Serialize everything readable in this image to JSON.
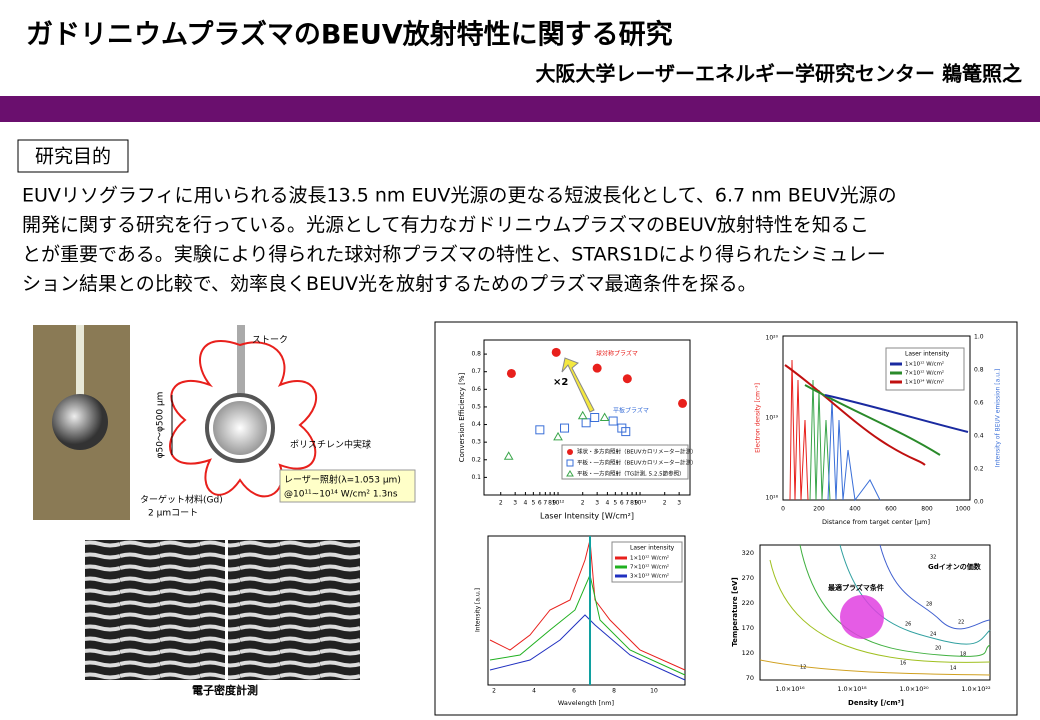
{
  "header": {
    "title": "ガドリニウムプラズマのBEUV放射特性に関する研究",
    "author": "大阪大学レーザーエネルギー学研究センター 鵜篭照之"
  },
  "purpose": {
    "heading": "研究目的",
    "lines": [
      "EUVリソグラフィに用いられる波長13.5 nm EUV光源の更なる短波長化として、6.7 nm BEUV光源の",
      "開発に関する研究を行っている。光源として有力なガドリニウムプラズマのBEUV放射特性を知るこ",
      "とが重要である。実験により得られた球対称プラズマの特性と、STARS1Dにより得られたシミュレー",
      "ション結果との比較で、効率良くBEUV光を放射するためのプラズマ最適条件を探る。"
    ]
  },
  "figures": {
    "target": {
      "stalk": "ストーク",
      "size": "φ50～φ500 μm",
      "sphere": "ポリスチレン中実球",
      "coating": [
        "ターゲット材料(Gd)",
        "2 μmコート"
      ],
      "laser": [
        "レーザー照射(λ=1.053 μm)",
        "@10¹¹~10¹⁴ W/cm² 1.3ns"
      ]
    },
    "fringe": {
      "caption": "電子密度計測"
    },
    "conversion_efficiency": {
      "type": "scatter",
      "x_label": "Laser Intensity [W/cm²]",
      "y_label": "Conversion Efficiency [%]",
      "log_x": true,
      "xlim": [
        125000000000.0,
        40700000000000.0
      ],
      "ylim": [
        0,
        0.88
      ],
      "xticks": [
        {
          "value": 200000000000.0,
          "label": "2"
        },
        {
          "value": 300000000000.0,
          "label": "3"
        },
        {
          "value": 400000000000.0,
          "label": "4"
        },
        {
          "value": 500000000000.0,
          "label": "5"
        },
        {
          "value": 600000000000.0,
          "label": "6"
        },
        {
          "value": 700000000000.0,
          "label": "7"
        },
        {
          "value": 800000000000.0,
          "label": "8"
        },
        {
          "value": 900000000000.0,
          "label": "9"
        },
        {
          "value": 1000000000000.0,
          "label": "10¹²"
        },
        {
          "value": 2000000000000.0,
          "label": "2"
        },
        {
          "value": 3000000000000.0,
          "label": "3"
        },
        {
          "value": 4000000000000.0,
          "label": "4"
        },
        {
          "value": 5000000000000.0,
          "label": "5"
        },
        {
          "value": 6000000000000.0,
          "label": "6"
        },
        {
          "value": 7000000000000.0,
          "label": "7"
        },
        {
          "value": 8000000000000.0,
          "label": "8"
        },
        {
          "value": 9000000000000.0,
          "label": "9"
        },
        {
          "value": 10000000000000.0,
          "label": "10¹³"
        },
        {
          "value": 20000000000000.0,
          "label": "2"
        },
        {
          "value": 30000000000000.0,
          "label": "3"
        }
      ],
      "yticks": [
        0.1,
        0.2,
        0.3,
        0.4,
        0.5,
        0.6,
        0.7,
        0.8
      ],
      "series": [
        {
          "name": "球状・多方向照射（BEUVカロリメーター計測）",
          "color": "#e8201c",
          "marker": "circle",
          "x": [
            270000000000.0,
            950000000000.0,
            3000000000000.0,
            7000000000000.0,
            33000000000000.0
          ],
          "values": [
            0.69,
            0.81,
            0.72,
            0.66,
            0.52
          ]
        },
        {
          "name": "平板・一方向照射（BEUVカロリメーター計測）",
          "color": "#3a6fd8",
          "marker": "square",
          "x": [
            600000000000.0,
            1200000000000.0,
            2200000000000.0,
            2800000000000.0,
            4700000000000.0,
            6000000000000.0,
            6700000000000.0
          ],
          "values": [
            0.37,
            0.38,
            0.41,
            0.44,
            0.42,
            0.38,
            0.36
          ]
        },
        {
          "name": "平板・一方向照射（TG計測, 5.2.5節参照）",
          "color": "#3aa54a",
          "marker": "triangle",
          "x": [
            250000000000.0,
            1000000000000.0,
            2000000000000.0,
            3700000000000.0
          ],
          "values": [
            0.22,
            0.33,
            0.45,
            0.44
          ]
        }
      ],
      "annotations": [
        "球対称プラズマ",
        "平板プラズマ",
        "×2"
      ]
    },
    "density": {
      "y_label": "Electron density [cm⁻³]",
      "y2_label": "Intensity of BEUV emission [a.u.]",
      "x_label": "Distance from target center [μm]",
      "legend_title": "Laser intensity",
      "legend": [
        "1×10¹² W/cm²",
        "7×10¹² W/cm²",
        "1×10¹⁴ W/cm²"
      ],
      "xticks": [
        "0",
        "200",
        "400",
        "600",
        "800",
        "1000"
      ],
      "yticks": [
        "10²⁰",
        "10¹⁹",
        "10¹⁸"
      ],
      "y2ticks": [
        "1.0",
        "0.8",
        "0.6",
        "0.4",
        "0.2",
        "0.0"
      ]
    },
    "spectrum": {
      "y_label": "Intensity [a.u.]",
      "x_label": "Wavelength [nm]",
      "legend_title": "Laser intensity",
      "legend": [
        "1×10¹² W/cm²",
        "7×10¹² W/cm²",
        "3×10¹³ W/cm²"
      ],
      "xticks": [
        "2",
        "4",
        "6",
        "8",
        "10"
      ]
    },
    "contour": {
      "y_label": "Temperature [eV]",
      "x_label": "Density [/cm³]",
      "title": "Gdイオンの価数",
      "optimum": "最適プラズマ条件",
      "yticks": [
        "320",
        "270",
        "220",
        "170",
        "120",
        "70"
      ],
      "xticks": [
        "1.0×10¹⁶",
        "1.0×10¹⁸",
        "1.0×10²⁰",
        "1.0×10²²"
      ],
      "levels": [
        "32",
        "28",
        "26",
        "24",
        "22",
        "20",
        "18",
        "16",
        "14",
        "12"
      ]
    }
  }
}
